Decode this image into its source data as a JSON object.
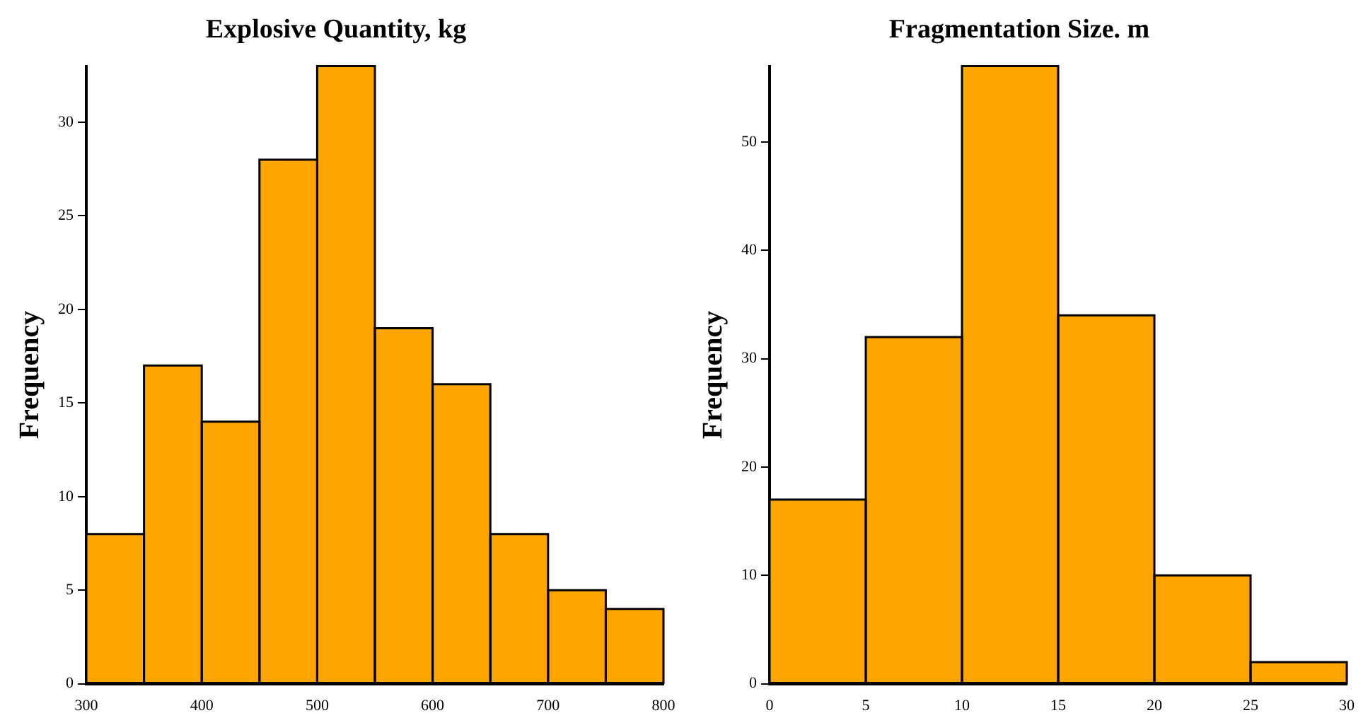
{
  "chart_data": [
    {
      "type": "histogram",
      "title": "Explosive Quantity, kg",
      "ylabel": "Frequency",
      "bins": [
        300,
        350,
        400,
        450,
        500,
        550,
        600,
        650,
        700,
        750,
        800
      ],
      "values": [
        8,
        17,
        14,
        28,
        33,
        19,
        16,
        8,
        5,
        4
      ],
      "color": "#ffa500",
      "xlim": [
        300,
        800
      ],
      "xticks": [
        300,
        400,
        500,
        600,
        700,
        800
      ],
      "ylim": [
        0,
        33
      ],
      "yticks": [
        0,
        5,
        10,
        15,
        20,
        25,
        30
      ],
      "grid": false
    },
    {
      "type": "histogram",
      "title": "Fragmentation Size. m",
      "ylabel": "Frequency",
      "bins": [
        0,
        5,
        10,
        15,
        20,
        25,
        30
      ],
      "values": [
        17,
        32,
        57,
        34,
        10,
        2
      ],
      "color": "#ffa500",
      "xlim": [
        0,
        30
      ],
      "xticks": [
        0,
        5,
        10,
        15,
        20,
        25,
        30
      ],
      "ylim": [
        0,
        57
      ],
      "yticks": [
        0,
        10,
        20,
        30,
        40,
        50
      ],
      "grid": false
    }
  ]
}
